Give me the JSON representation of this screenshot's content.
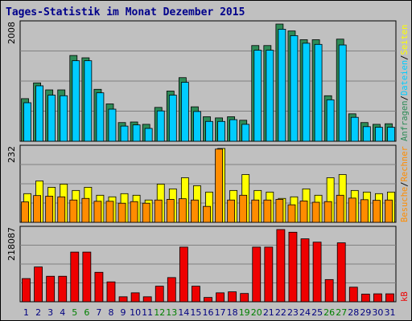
{
  "title": "Tages-Statistik im Monat Dezember 2015",
  "colors": {
    "background": "#c0c0c0",
    "plot_bg": "#c0c0c0",
    "grid": "#808080",
    "title": "#00008b",
    "weekday_label": "#000080",
    "weekend_label": "#008000",
    "anfragen": "#2e8b57",
    "dateien": "#00ccff",
    "seiten": "#ffff00",
    "besuche": "#ff8c00",
    "kb": "#ee0000",
    "separator": "#000000"
  },
  "chart_data": [
    {
      "type": "bar",
      "panel": "top",
      "ytick_label": "2008",
      "ylim": [
        0,
        2008
      ],
      "grid": true,
      "categories": [
        "1",
        "2",
        "3",
        "4",
        "5",
        "6",
        "7",
        "8",
        "9",
        "10",
        "11",
        "12",
        "13",
        "14",
        "15",
        "16",
        "17",
        "18",
        "19",
        "20",
        "21",
        "22",
        "23",
        "24",
        "25",
        "26",
        "27",
        "28",
        "29",
        "30",
        "31"
      ],
      "weekend_days": [
        "5",
        "6",
        "12",
        "13",
        "19",
        "20",
        "26",
        "27"
      ],
      "series": [
        {
          "name": "Anfragen",
          "values": [
            730,
            1000,
            880,
            880,
            1470,
            1430,
            890,
            640,
            320,
            330,
            290,
            580,
            860,
            1090,
            590,
            420,
            400,
            420,
            360,
            1640,
            1640,
            2008,
            1890,
            1740,
            1740,
            780,
            1750,
            470,
            320,
            290,
            300
          ]
        },
        {
          "name": "Dateien",
          "values": [
            660,
            950,
            790,
            780,
            1380,
            1380,
            830,
            550,
            260,
            280,
            220,
            520,
            790,
            1010,
            510,
            340,
            340,
            370,
            290,
            1560,
            1560,
            1920,
            1810,
            1680,
            1660,
            710,
            1650,
            410,
            250,
            240,
            240
          ]
        }
      ],
      "side_labels": [
        {
          "text": "Anfragen",
          "color_key": "anfragen"
        },
        {
          "text": "/",
          "color_key": "separator"
        },
        {
          "text": "Dateien",
          "color_key": "dateien"
        },
        {
          "text": "/",
          "color_key": "separator"
        },
        {
          "text": "Seiten",
          "color_key": "seiten"
        }
      ]
    },
    {
      "type": "bar",
      "panel": "middle",
      "ytick_label": "232",
      "ylim": [
        0,
        232
      ],
      "grid": true,
      "series": [
        {
          "name": "Seiten",
          "values": [
            90,
            130,
            110,
            120,
            100,
            110,
            85,
            80,
            90,
            85,
            70,
            120,
            105,
            140,
            115,
            95,
            232,
            100,
            150,
            100,
            95,
            75,
            80,
            105,
            85,
            140,
            150,
            100,
            95,
            90,
            95
          ]
        },
        {
          "name": "Besuche",
          "values": [
            64,
            84,
            82,
            80,
            70,
            75,
            66,
            66,
            60,
            65,
            60,
            70,
            72,
            74,
            70,
            50,
            230,
            70,
            85,
            70,
            70,
            72,
            55,
            67,
            63,
            65,
            85,
            76,
            71,
            69,
            70
          ]
        }
      ],
      "side_labels": [
        {
          "text": "Besuche",
          "color_key": "besuche"
        },
        {
          "text": "/",
          "color_key": "separator"
        },
        {
          "text": "Rechner",
          "color_key": "besuche"
        }
      ]
    },
    {
      "type": "bar",
      "panel": "bottom",
      "ytick_label": "218087",
      "ylim": [
        0,
        218087
      ],
      "grid": true,
      "series": [
        {
          "name": "kB",
          "values": [
            70000,
            105000,
            77000,
            77000,
            150000,
            150000,
            89000,
            60000,
            15000,
            27000,
            15000,
            47000,
            73000,
            165000,
            47000,
            13000,
            27000,
            30000,
            25000,
            165000,
            165000,
            218087,
            210000,
            190000,
            180000,
            67000,
            178000,
            44000,
            23000,
            24000,
            24000
          ]
        }
      ],
      "side_labels": [
        {
          "text": "kB",
          "color_key": "kb"
        }
      ]
    }
  ]
}
